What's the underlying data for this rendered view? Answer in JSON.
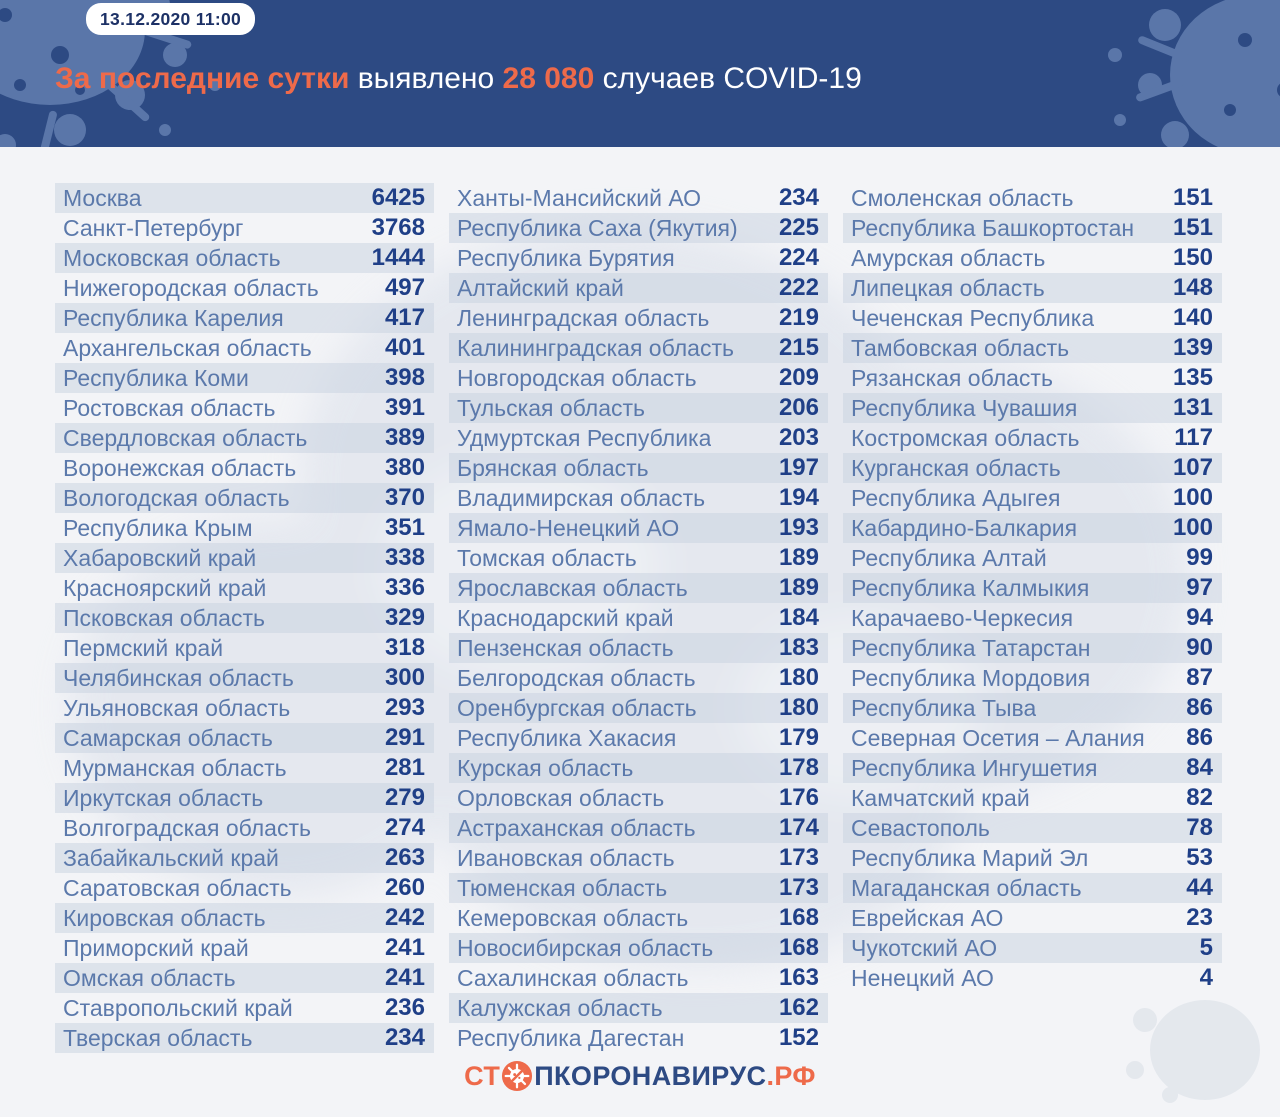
{
  "header": {
    "timestamp": "13.12.2020 11:00",
    "headline_accent": "За последние сутки",
    "headline_mid": " выявлено ",
    "headline_count": "28 080",
    "headline_tail": " случаев COVID-19"
  },
  "chart_data": {
    "type": "table",
    "title": "За последние сутки выявлено 28 080 случаев COVID-19",
    "total_new_cases": 28080,
    "date": "13.12.2020 11:00",
    "columns": [
      {
        "rows": [
          [
            "Москва",
            6425
          ],
          [
            "Санкт-Петербург",
            3768
          ],
          [
            "Московская область",
            1444
          ],
          [
            "Нижегородская область",
            497
          ],
          [
            "Республика Карелия",
            417
          ],
          [
            "Архангельская область",
            401
          ],
          [
            "Республика Коми",
            398
          ],
          [
            "Ростовская область",
            391
          ],
          [
            "Свердловская область",
            389
          ],
          [
            "Воронежская область",
            380
          ],
          [
            "Вологодская область",
            370
          ],
          [
            "Республика Крым",
            351
          ],
          [
            "Хабаровский край",
            338
          ],
          [
            "Красноярский край",
            336
          ],
          [
            "Псковская область",
            329
          ],
          [
            "Пермский край",
            318
          ],
          [
            "Челябинская область",
            300
          ],
          [
            "Ульяновская область",
            293
          ],
          [
            "Самарская область",
            291
          ],
          [
            "Мурманская область",
            281
          ],
          [
            "Иркутская область",
            279
          ],
          [
            "Волгоградская область",
            274
          ],
          [
            "Забайкальский край",
            263
          ],
          [
            "Саратовская область",
            260
          ],
          [
            "Кировская область",
            242
          ],
          [
            "Приморский край",
            241
          ],
          [
            "Омская область",
            241
          ],
          [
            "Ставропольский край",
            236
          ],
          [
            "Тверская область",
            234
          ]
        ]
      },
      {
        "rows": [
          [
            "Ханты-Мансийский АО",
            234
          ],
          [
            "Республика Саха (Якутия)",
            225
          ],
          [
            "Республика Бурятия",
            224
          ],
          [
            "Алтайский край",
            222
          ],
          [
            "Ленинградская область",
            219
          ],
          [
            "Калининградская область",
            215
          ],
          [
            "Новгородская область",
            209
          ],
          [
            "Тульская область",
            206
          ],
          [
            "Удмуртская Республика",
            203
          ],
          [
            "Брянская область",
            197
          ],
          [
            "Владимирская область",
            194
          ],
          [
            "Ямало-Ненецкий АО",
            193
          ],
          [
            "Томская область",
            189
          ],
          [
            "Ярославская область",
            189
          ],
          [
            "Краснодарский край",
            184
          ],
          [
            "Пензенская область",
            183
          ],
          [
            "Белгородская область",
            180
          ],
          [
            "Оренбургская область",
            180
          ],
          [
            "Республика Хакасия",
            179
          ],
          [
            "Курская область",
            178
          ],
          [
            "Орловская область",
            176
          ],
          [
            "Астраханская область",
            174
          ],
          [
            "Ивановская область",
            173
          ],
          [
            "Тюменская область",
            173
          ],
          [
            "Кемеровская область",
            168
          ],
          [
            "Новосибирская область",
            168
          ],
          [
            "Сахалинская область",
            163
          ],
          [
            "Калужская область",
            162
          ],
          [
            "Республика Дагестан",
            152
          ]
        ]
      },
      {
        "rows": [
          [
            "Смоленская область",
            151
          ],
          [
            "Республика Башкортостан",
            151
          ],
          [
            "Амурская область",
            150
          ],
          [
            "Липецкая область",
            148
          ],
          [
            "Чеченская Республика",
            140
          ],
          [
            "Тамбовская область",
            139
          ],
          [
            "Рязанская область",
            135
          ],
          [
            "Республика Чувашия",
            131
          ],
          [
            "Костромская область",
            117
          ],
          [
            "Курганская область",
            107
          ],
          [
            "Республика Адыгея",
            100
          ],
          [
            "Кабардино-Балкария",
            100
          ],
          [
            "Республика Алтай",
            99
          ],
          [
            "Республика Калмыкия",
            97
          ],
          [
            "Карачаево-Черкесия",
            94
          ],
          [
            "Республика Татарстан",
            90
          ],
          [
            "Республика Мордовия",
            87
          ],
          [
            "Республика Тыва",
            86
          ],
          [
            "Северная Осетия – Алания",
            86
          ],
          [
            "Республика Ингушетия",
            84
          ],
          [
            "Камчатский край",
            82
          ],
          [
            "Севастополь",
            78
          ],
          [
            "Республика Марий Эл",
            53
          ],
          [
            "Магаданская область",
            44
          ],
          [
            "Еврейская АО",
            23
          ],
          [
            "Чукотский АО",
            5
          ],
          [
            "Ненецкий АО",
            4
          ]
        ]
      }
    ]
  },
  "footer": {
    "logo_st": "СТ",
    "logo_middle": "ПКОРОНАВИРУС",
    "logo_rf": ".РФ"
  },
  "colors": {
    "header_bg": "#2d4a83",
    "accent": "#ee6a4a",
    "label": "#5b79ab",
    "value": "#1f3f87",
    "stripe": "rgba(200,210,224,0.5)",
    "page_bg": "#f3f4f7",
    "splat": "#5a76a9",
    "pill_text": "#1d3166",
    "logo_navy": "#2d4a83"
  }
}
